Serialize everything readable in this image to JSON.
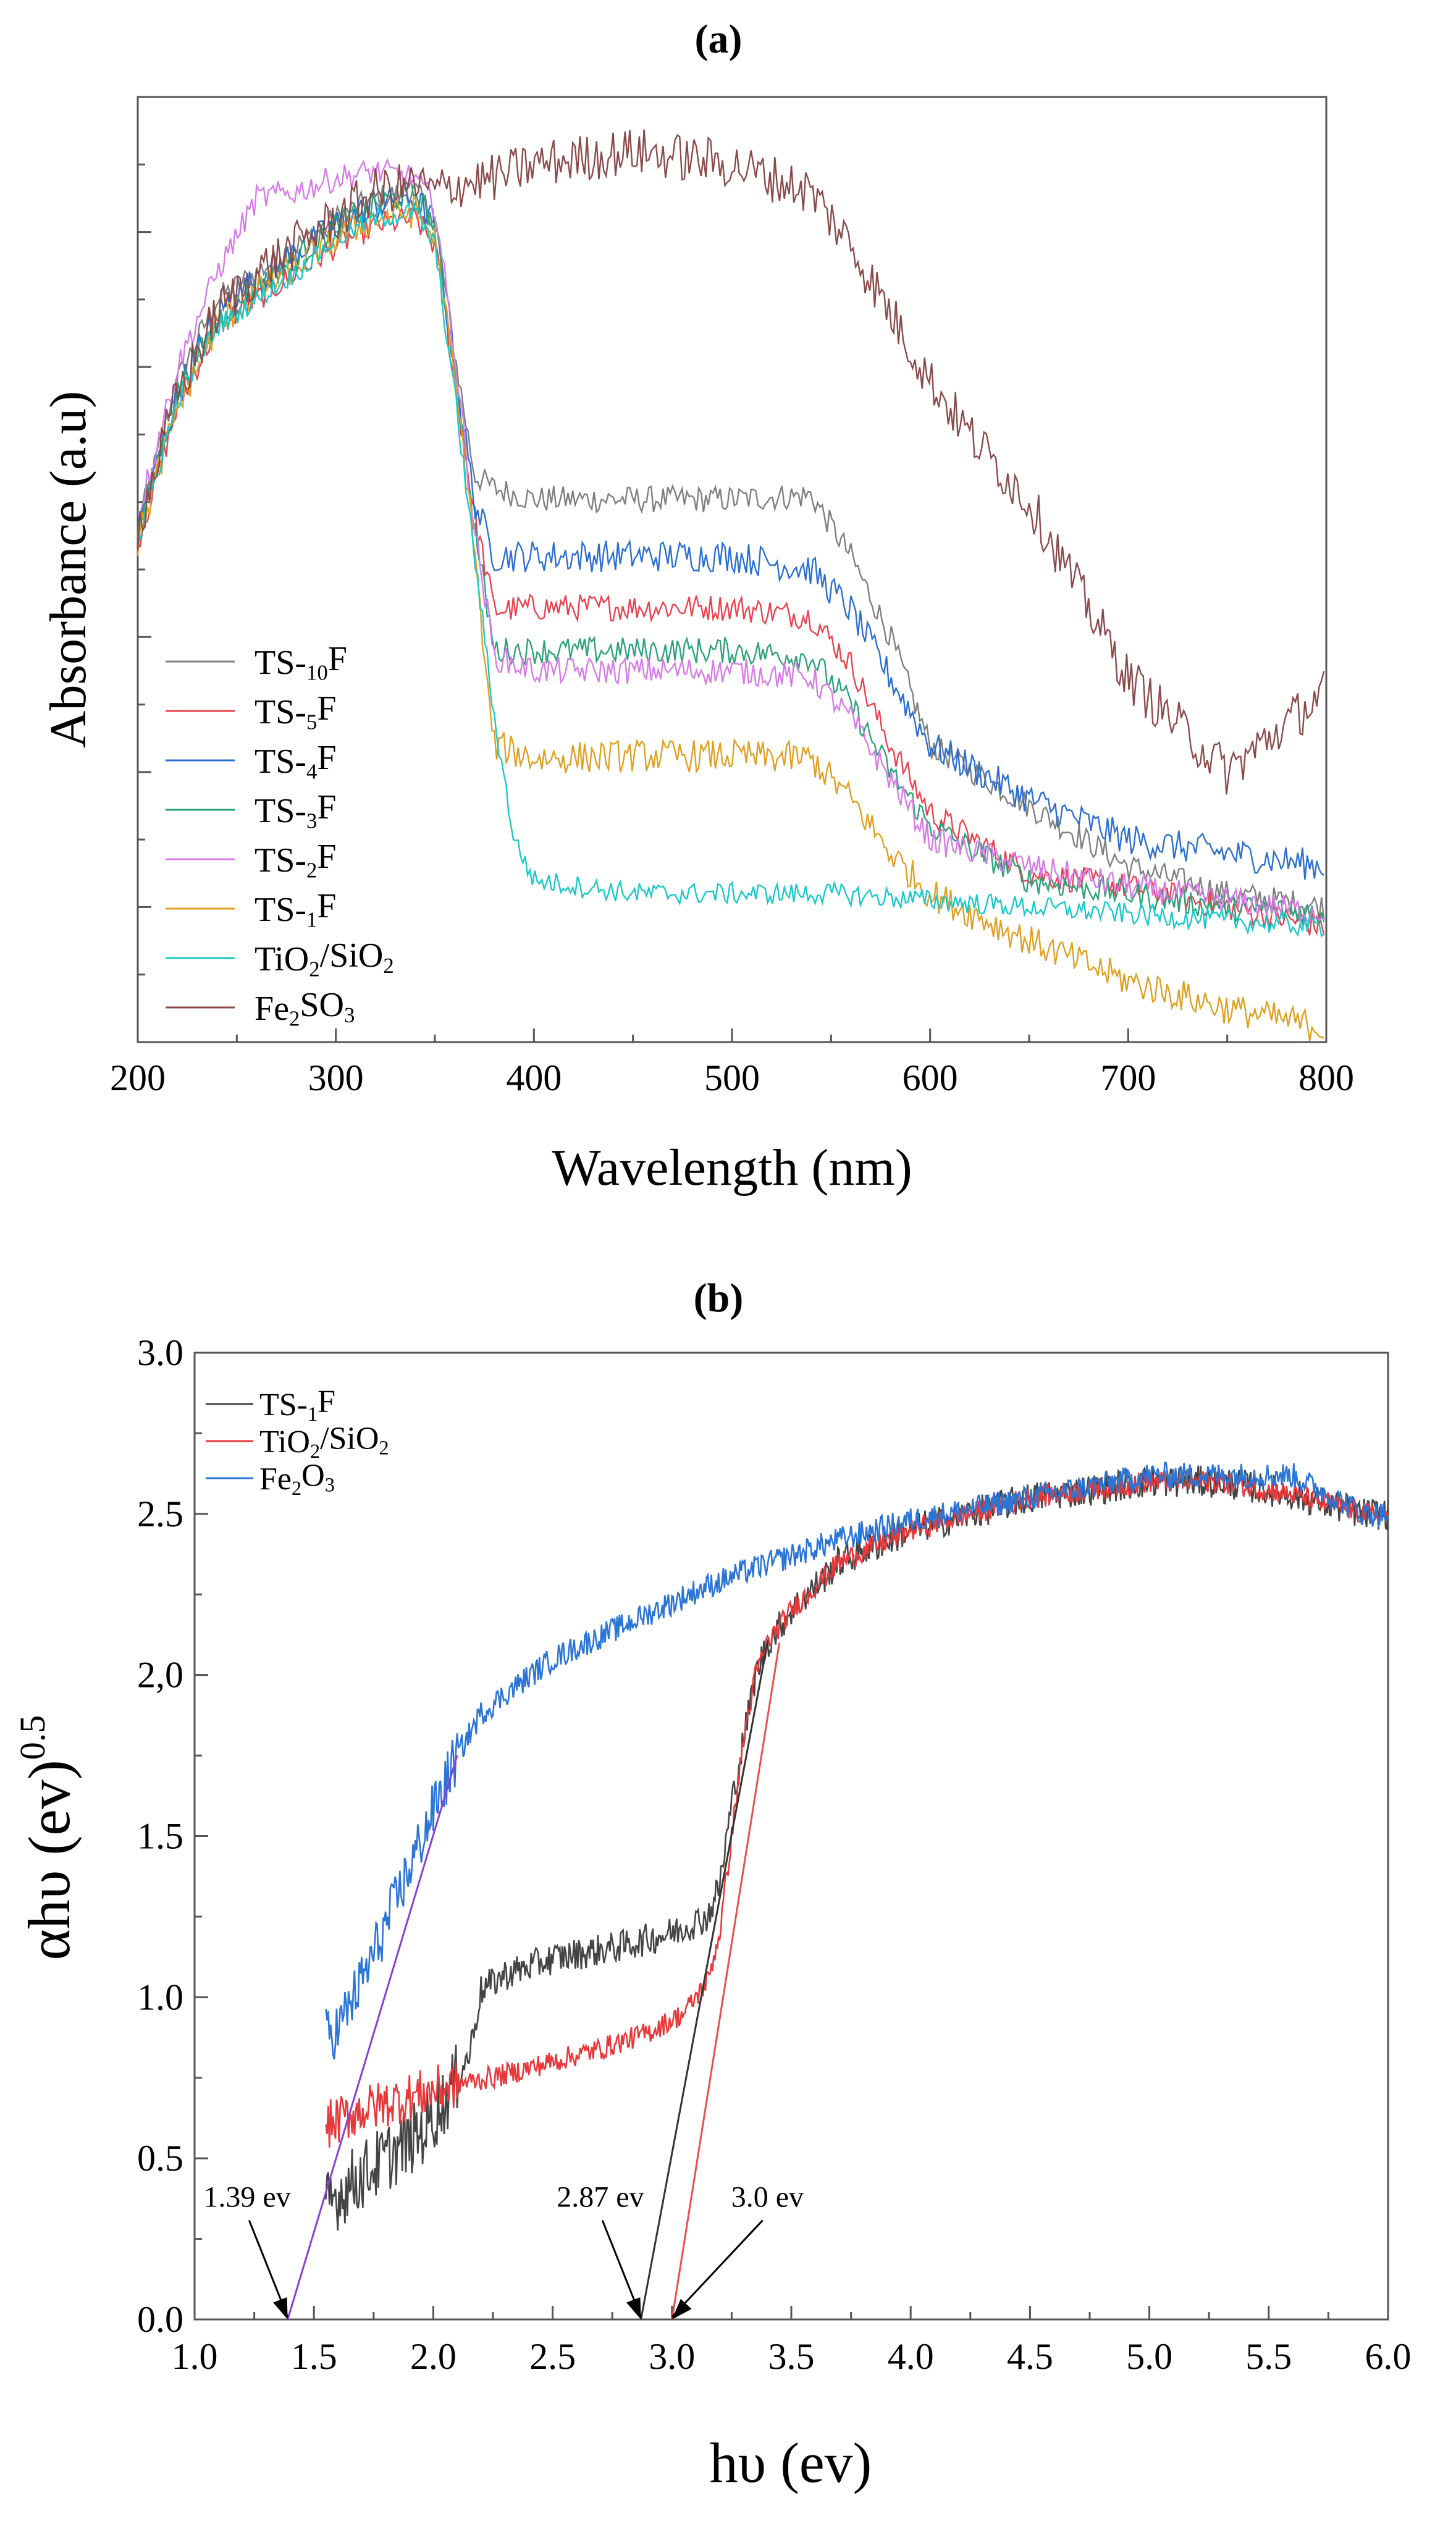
{
  "chart_data": [
    {
      "panel": "(a)",
      "type": "line",
      "xlabel": "Wavelength (nm)",
      "ylabel": "Absorbance (a.u)",
      "xlim": [
        200,
        800
      ],
      "ylim": [
        0,
        7
      ],
      "x_ticks": [
        "200",
        "300",
        "400",
        "500",
        "600",
        "700",
        "800"
      ],
      "y_ticks_labeled": false,
      "legend_position": "bottom-left",
      "series": [
        {
          "name": "TS-10F",
          "color": "#7f7f7f",
          "noise": 0.1,
          "x": [
            200,
            220,
            240,
            260,
            280,
            300,
            320,
            340,
            350,
            360,
            370,
            380,
            400,
            450,
            500,
            540,
            560,
            580,
            600,
            650,
            700,
            750,
            800
          ],
          "y": [
            3.8,
            4.9,
            5.5,
            5.7,
            5.9,
            6.1,
            6.25,
            6.3,
            6.1,
            5.1,
            4.2,
            4.1,
            4.02,
            4.02,
            4.02,
            4.05,
            3.6,
            3.0,
            2.2,
            1.75,
            1.3,
            1.1,
            1.0
          ]
        },
        {
          "name": "TS-5F",
          "color": "#e8434f",
          "noise": 0.1,
          "x": [
            200,
            220,
            240,
            260,
            280,
            300,
            320,
            340,
            350,
            360,
            370,
            380,
            400,
            450,
            500,
            540,
            560,
            580,
            600,
            650,
            700,
            750,
            800
          ],
          "y": [
            3.7,
            4.7,
            5.3,
            5.5,
            5.7,
            5.9,
            6.05,
            6.1,
            5.9,
            4.9,
            3.9,
            3.2,
            3.22,
            3.22,
            3.22,
            3.15,
            2.8,
            2.2,
            1.7,
            1.25,
            1.15,
            1.0,
            0.85
          ]
        },
        {
          "name": "TS-4F",
          "color": "#2a6fd1",
          "noise": 0.12,
          "x": [
            200,
            220,
            240,
            260,
            280,
            300,
            320,
            340,
            350,
            360,
            370,
            380,
            400,
            450,
            500,
            540,
            560,
            580,
            600,
            650,
            700,
            750,
            800
          ],
          "y": [
            3.8,
            4.8,
            5.4,
            5.65,
            5.85,
            6.05,
            6.2,
            6.25,
            6.05,
            5.0,
            4.0,
            3.6,
            3.6,
            3.6,
            3.6,
            3.5,
            3.2,
            2.7,
            2.2,
            1.8,
            1.5,
            1.4,
            1.3
          ]
        },
        {
          "name": "TS-3F",
          "color": "#2aa37a",
          "noise": 0.1,
          "x": [
            200,
            220,
            240,
            260,
            280,
            300,
            320,
            340,
            350,
            360,
            370,
            380,
            400,
            450,
            500,
            540,
            560,
            580,
            600,
            650,
            700,
            750,
            800
          ],
          "y": [
            3.8,
            4.8,
            5.35,
            5.6,
            5.8,
            6.05,
            6.2,
            6.3,
            6.05,
            5.0,
            3.8,
            2.9,
            2.9,
            2.9,
            2.9,
            2.85,
            2.5,
            2.0,
            1.6,
            1.2,
            1.1,
            1.0,
            0.95
          ]
        },
        {
          "name": "TS-2F",
          "color": "#d77be8",
          "noise": 0.1,
          "x": [
            200,
            220,
            240,
            260,
            280,
            300,
            320,
            340,
            350,
            360,
            370,
            380,
            400,
            450,
            500,
            540,
            560,
            580,
            600,
            650,
            700,
            750,
            800
          ],
          "y": [
            3.9,
            5.0,
            5.7,
            6.25,
            6.3,
            6.4,
            6.45,
            6.4,
            6.2,
            5.1,
            3.8,
            2.85,
            2.75,
            2.75,
            2.75,
            2.7,
            2.4,
            1.95,
            1.5,
            1.3,
            1.15,
            1.05,
            0.95
          ]
        },
        {
          "name": "TS-1F",
          "color": "#e0a020",
          "noise": 0.12,
          "x": [
            200,
            220,
            240,
            260,
            280,
            300,
            320,
            340,
            350,
            360,
            370,
            375,
            380,
            400,
            450,
            500,
            540,
            560,
            580,
            600,
            650,
            700,
            750,
            800
          ],
          "y": [
            3.7,
            4.7,
            5.3,
            5.55,
            5.75,
            5.95,
            6.1,
            6.15,
            5.95,
            4.9,
            3.7,
            2.8,
            2.2,
            2.1,
            2.12,
            2.12,
            2.1,
            1.8,
            1.4,
            1.1,
            0.75,
            0.45,
            0.25,
            0.1
          ]
        },
        {
          "name": "TiO2/SiO2",
          "color": "#19c9c9",
          "noise": 0.08,
          "x": [
            200,
            220,
            240,
            260,
            280,
            300,
            320,
            340,
            350,
            360,
            370,
            380,
            390,
            400,
            450,
            500,
            550,
            600,
            650,
            700,
            750,
            800
          ],
          "y": [
            3.7,
            4.75,
            5.3,
            5.5,
            5.7,
            5.95,
            6.1,
            6.15,
            5.9,
            4.8,
            3.6,
            2.4,
            1.5,
            1.2,
            1.1,
            1.1,
            1.1,
            1.05,
            1.0,
            0.95,
            0.9,
            0.85
          ]
        },
        {
          "name": "Fe2SO3",
          "color": "#8a4a4a",
          "noise": 0.18,
          "x": [
            200,
            220,
            240,
            260,
            280,
            300,
            320,
            340,
            350,
            360,
            380,
            400,
            450,
            500,
            540,
            560,
            580,
            600,
            620,
            650,
            700,
            750,
            800
          ],
          "y": [
            3.8,
            4.8,
            5.4,
            5.7,
            5.9,
            6.1,
            6.3,
            6.35,
            6.3,
            6.35,
            6.4,
            6.5,
            6.6,
            6.5,
            6.3,
            5.9,
            5.4,
            4.9,
            4.5,
            4.0,
            2.7,
            2.0,
            2.6
          ]
        }
      ]
    },
    {
      "panel": "(b)",
      "type": "line",
      "xlabel": "hυ (ev)",
      "ylabel": "αhυ (ev)",
      "ylabel_superscript": "0.5",
      "xlim": [
        1.0,
        6.0
      ],
      "ylim": [
        0.0,
        3.0
      ],
      "x_ticks": [
        "1.0",
        "1.5",
        "2.0",
        "2.5",
        "3.0",
        "3.5",
        "4.0",
        "4.5",
        "5.0",
        "5.5",
        "6.0"
      ],
      "y_ticks": [
        "0.0",
        "0.5",
        "1.0",
        "1.5",
        "2,0",
        "2.5",
        "3.0"
      ],
      "legend_position": "top-left",
      "series": [
        {
          "name": "TS-1F",
          "color": "#444444",
          "noise": 0.05,
          "x": [
            1.55,
            1.65,
            1.8,
            1.95,
            2.05,
            2.15,
            2.2,
            2.3,
            2.5,
            2.8,
            3.0,
            3.15,
            3.2,
            3.25,
            3.3,
            3.35,
            3.4,
            3.5,
            3.7,
            4.0,
            4.5,
            5.0,
            5.3,
            5.6,
            5.9,
            6.0
          ],
          "y": [
            0.35,
            0.42,
            0.5,
            0.58,
            0.68,
            0.82,
            1.02,
            1.07,
            1.12,
            1.16,
            1.2,
            1.25,
            1.35,
            1.6,
            1.8,
            2.0,
            2.1,
            2.2,
            2.35,
            2.45,
            2.55,
            2.6,
            2.6,
            2.56,
            2.5,
            2.5
          ]
        },
        {
          "name": "TiO2/SiO2",
          "color": "#e8383a",
          "noise": 0.035,
          "x": [
            1.55,
            1.7,
            1.9,
            2.1,
            2.3,
            2.5,
            2.7,
            2.9,
            3.05,
            3.15,
            3.2,
            3.25,
            3.3,
            3.35,
            3.4,
            3.5,
            3.7,
            4.0,
            4.5,
            5.0,
            5.3,
            5.6,
            5.9,
            6.0
          ],
          "y": [
            0.6,
            0.65,
            0.69,
            0.73,
            0.76,
            0.8,
            0.84,
            0.89,
            0.95,
            1.05,
            1.2,
            1.5,
            1.8,
            2.0,
            2.1,
            2.2,
            2.35,
            2.45,
            2.55,
            2.6,
            2.6,
            2.56,
            2.5,
            2.5
          ]
        },
        {
          "name": "Fe2O3",
          "color": "#2a75d6",
          "noise": 0.04,
          "x": [
            1.55,
            1.6,
            1.7,
            1.8,
            1.9,
            2.0,
            2.1,
            2.2,
            2.3,
            2.5,
            2.7,
            2.9,
            3.1,
            3.3,
            3.5,
            3.7,
            4.0,
            4.5,
            5.0,
            5.3,
            5.6,
            5.9,
            6.0
          ],
          "y": [
            0.88,
            0.9,
            1.05,
            1.22,
            1.4,
            1.58,
            1.75,
            1.88,
            1.94,
            2.05,
            2.12,
            2.19,
            2.26,
            2.32,
            2.37,
            2.42,
            2.48,
            2.55,
            2.62,
            2.62,
            2.62,
            2.5,
            2.5
          ]
        }
      ],
      "fit_lines": [
        {
          "color": "#8a3fd6",
          "x": [
            1.39,
            2.1
          ],
          "y": [
            0.0,
            1.75
          ]
        },
        {
          "color": "#333333",
          "x": [
            2.87,
            3.4
          ],
          "y": [
            0.0,
            2.1
          ]
        },
        {
          "color": "#e85050",
          "x": [
            3.0,
            3.45
          ],
          "y": [
            0.0,
            2.1
          ]
        }
      ],
      "annotations": [
        {
          "text": "1.39 ev",
          "point": [
            1.39,
            0.0
          ],
          "label_at": [
            1.22,
            0.35
          ]
        },
        {
          "text": "2.87 ev",
          "point": [
            2.87,
            0.0
          ],
          "label_at": [
            2.7,
            0.35
          ]
        },
        {
          "text": "3.0 ev",
          "point": [
            3.0,
            0.0
          ],
          "label_at": [
            3.4,
            0.35
          ]
        }
      ]
    }
  ]
}
